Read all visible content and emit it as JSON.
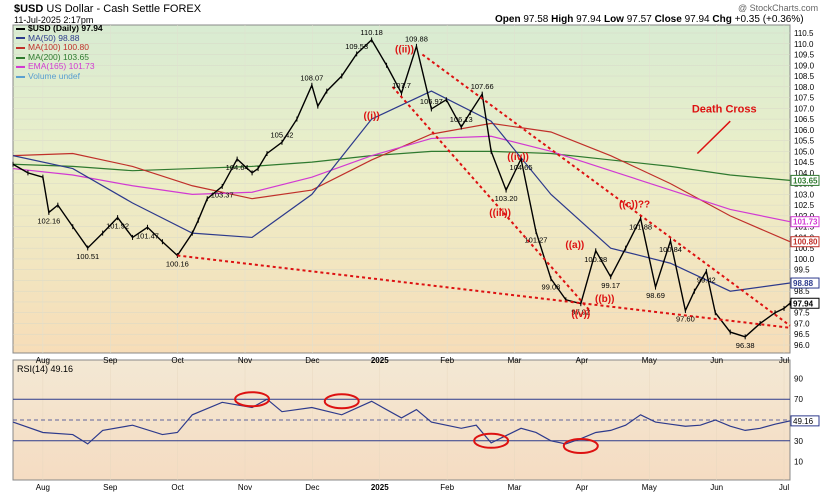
{
  "header": {
    "symbol": "$USD",
    "name": "US Dollar - Cash Settle",
    "market": "FOREX",
    "date": "11-Jul-2025 2:17pm",
    "ohlc": {
      "open": "97.58",
      "high": "97.94",
      "low": "97.57",
      "close": "97.94",
      "change": "+0.35 (+0.36%)"
    },
    "watermark": "@ StockCharts.com"
  },
  "legend": [
    {
      "label": "$USD (Daily) 97.94",
      "color": "#000000"
    },
    {
      "label": "MA(50) 98.88",
      "color": "#2d3a8c"
    },
    {
      "label": "MA(100) 100.80",
      "color": "#c0302a"
    },
    {
      "label": "MA(200) 103.65",
      "color": "#2f7a2f"
    },
    {
      "label": "EMA(165) 101.73",
      "color": "#d23ad2"
    },
    {
      "label": "Volume undef",
      "color": "#5aa0d0"
    }
  ],
  "annotations": [
    {
      "text": "Death Cross",
      "color": "#dd1111"
    },
    {
      "text": "((ii))",
      "color": "#dd1111"
    },
    {
      "text": "((i))",
      "color": "#dd1111"
    },
    {
      "text": "((iii))",
      "color": "#dd1111"
    },
    {
      "text": "((iv))",
      "color": "#dd1111"
    },
    {
      "text": "((v))",
      "color": "#dd1111"
    },
    {
      "text": "((a))",
      "color": "#dd1111"
    },
    {
      "text": "((b))",
      "color": "#dd1111"
    },
    {
      "text": "((c))??",
      "color": "#dd1111"
    }
  ],
  "chart_data": {
    "type": "line",
    "x_months": [
      "Aug",
      "Sep",
      "Oct",
      "Nov",
      "Dec",
      "2025",
      "Feb",
      "Mar",
      "Apr",
      "May",
      "Jun",
      "Jul"
    ],
    "y_ticks": [
      "110.5",
      "110.0",
      "109.5",
      "109.0",
      "108.5",
      "108.0",
      "107.5",
      "107.0",
      "106.5",
      "106.0",
      "105.5",
      "105.0",
      "104.5",
      "104.0",
      "103.5",
      "103.0",
      "102.5",
      "102.0",
      "101.5",
      "101.0",
      "100.5",
      "100.0",
      "99.5",
      "99.0",
      "98.5",
      "98.0",
      "97.5",
      "97.0",
      "96.5",
      "96.0"
    ],
    "ylim": [
      96.0,
      110.5
    ],
    "price_series": {
      "name": "$USD (Daily)",
      "x": [
        0,
        5,
        10,
        12,
        15,
        20,
        25,
        30,
        35,
        40,
        45,
        50,
        55,
        60,
        62,
        65,
        70,
        75,
        80,
        82,
        85,
        90,
        95,
        100,
        102,
        105,
        110,
        115,
        120,
        125,
        130,
        135,
        140,
        145,
        150,
        153,
        157,
        160,
        165,
        170,
        175,
        180,
        185,
        190,
        195,
        200,
        205,
        210,
        215,
        220,
        225,
        228,
        232,
        235,
        240,
        245,
        250,
        255,
        258,
        260
      ],
      "y": [
        104.4,
        104.0,
        103.8,
        102.16,
        102.5,
        101.5,
        100.51,
        101.2,
        101.92,
        101.0,
        101.47,
        100.8,
        100.16,
        101.2,
        101.8,
        102.8,
        103.37,
        104.64,
        104.0,
        104.2,
        104.9,
        105.42,
        106.5,
        108.07,
        107.1,
        107.8,
        108.5,
        109.53,
        110.18,
        109.0,
        107.7,
        109.88,
        106.97,
        107.4,
        106.13,
        106.8,
        107.66,
        105.0,
        103.2,
        104.65,
        101.27,
        99.08,
        98.1,
        97.92,
        100.38,
        99.17,
        100.5,
        101.88,
        98.69,
        100.84,
        97.6,
        98.5,
        99.42,
        97.5,
        96.6,
        96.38,
        97.0,
        97.5,
        97.7,
        97.94
      ]
    },
    "ma50": {
      "name": "MA(50)",
      "x": [
        0,
        20,
        40,
        60,
        80,
        100,
        120,
        140,
        160,
        180,
        200,
        220,
        240,
        260
      ],
      "y": [
        104.8,
        104.2,
        102.6,
        101.2,
        101.0,
        103.0,
        106.5,
        107.8,
        106.4,
        103.0,
        100.5,
        99.8,
        98.5,
        98.88
      ]
    },
    "ma100": {
      "name": "MA(100)",
      "x": [
        0,
        20,
        40,
        60,
        80,
        100,
        120,
        140,
        160,
        180,
        200,
        220,
        240,
        260
      ],
      "y": [
        104.8,
        104.9,
        104.3,
        103.4,
        102.8,
        103.2,
        104.6,
        105.8,
        106.3,
        105.9,
        104.8,
        103.5,
        102.0,
        100.8
      ]
    },
    "ma200": {
      "name": "MA(200)",
      "x": [
        0,
        20,
        40,
        60,
        80,
        100,
        120,
        140,
        160,
        180,
        200,
        220,
        240,
        260
      ],
      "y": [
        104.4,
        104.3,
        104.1,
        104.2,
        104.3,
        104.5,
        104.8,
        105.0,
        105.0,
        104.9,
        104.6,
        104.3,
        103.9,
        103.65
      ]
    },
    "ema165": {
      "name": "EMA(165)",
      "x": [
        0,
        20,
        40,
        60,
        80,
        100,
        120,
        140,
        160,
        180,
        200,
        220,
        240,
        260
      ],
      "y": [
        104.2,
        103.9,
        103.4,
        103.0,
        103.1,
        103.8,
        104.8,
        105.6,
        105.7,
        105.0,
        104.1,
        103.2,
        102.3,
        101.73
      ]
    },
    "labels": [
      {
        "text": "102.16",
        "x": 12,
        "y": 102.16
      },
      {
        "text": "100.51",
        "x": 25,
        "y": 100.51
      },
      {
        "text": "101.92",
        "x": 35,
        "y": 101.92
      },
      {
        "text": "101.47",
        "x": 45,
        "y": 101.47
      },
      {
        "text": "100.16",
        "x": 55,
        "y": 100.16
      },
      {
        "text": "103.37",
        "x": 70,
        "y": 103.37
      },
      {
        "text": "104.64",
        "x": 75,
        "y": 104.64
      },
      {
        "text": "105.42",
        "x": 90,
        "y": 105.42
      },
      {
        "text": "108.07",
        "x": 100,
        "y": 108.07
      },
      {
        "text": "109.53",
        "x": 115,
        "y": 109.53
      },
      {
        "text": "110.18",
        "x": 120,
        "y": 110.18
      },
      {
        "text": "107.7",
        "x": 130,
        "y": 107.7
      },
      {
        "text": "109.88",
        "x": 135,
        "y": 109.88
      },
      {
        "text": "106.97",
        "x": 140,
        "y": 106.97
      },
      {
        "text": "106.13",
        "x": 150,
        "y": 106.13
      },
      {
        "text": "107.66",
        "x": 157,
        "y": 107.66
      },
      {
        "text": "103.20",
        "x": 165,
        "y": 103.2
      },
      {
        "text": "104.65",
        "x": 170,
        "y": 104.65
      },
      {
        "text": "101.27",
        "x": 175,
        "y": 101.27
      },
      {
        "text": "99.08",
        "x": 180,
        "y": 99.08
      },
      {
        "text": "97.92",
        "x": 190,
        "y": 97.92
      },
      {
        "text": "100.38",
        "x": 195,
        "y": 100.38
      },
      {
        "text": "99.17",
        "x": 200,
        "y": 99.17
      },
      {
        "text": "101.88",
        "x": 210,
        "y": 101.88
      },
      {
        "text": "98.69",
        "x": 215,
        "y": 98.69
      },
      {
        "text": "100.84",
        "x": 220,
        "y": 100.84
      },
      {
        "text": "97.60",
        "x": 225,
        "y": 97.6
      },
      {
        "text": "99.42",
        "x": 232,
        "y": 99.42
      },
      {
        "text": "96.38",
        "x": 245,
        "y": 96.38
      }
    ],
    "last_values": [
      {
        "text": "98.88",
        "color": "#2d3a8c"
      },
      {
        "text": "97.94",
        "color": "#000000"
      },
      {
        "text": "103.65",
        "color": "#2f7a2f"
      },
      {
        "text": "101.73",
        "color": "#d23ad2"
      },
      {
        "text": "100.80",
        "color": "#c0302a"
      }
    ],
    "rsi": {
      "label": "RSI(14) 49.16",
      "last": "49.16",
      "ylim": [
        0,
        100
      ],
      "ticks": [
        "90",
        "70",
        "50",
        "30",
        "10"
      ],
      "overbought": 70,
      "oversold": 30,
      "x": [
        0,
        10,
        20,
        25,
        30,
        40,
        50,
        55,
        60,
        70,
        80,
        85,
        90,
        100,
        110,
        120,
        130,
        135,
        140,
        150,
        155,
        160,
        165,
        170,
        175,
        180,
        185,
        190,
        195,
        200,
        205,
        210,
        215,
        220,
        225,
        230,
        235,
        240,
        245,
        250,
        255,
        260
      ],
      "y": [
        48,
        38,
        36,
        27,
        40,
        45,
        36,
        38,
        55,
        67,
        62,
        70,
        58,
        62,
        55,
        68,
        52,
        60,
        48,
        42,
        45,
        28,
        35,
        42,
        38,
        30,
        27,
        32,
        38,
        40,
        45,
        55,
        48,
        46,
        44,
        45,
        50,
        44,
        40,
        42,
        46,
        49.16
      ]
    }
  }
}
